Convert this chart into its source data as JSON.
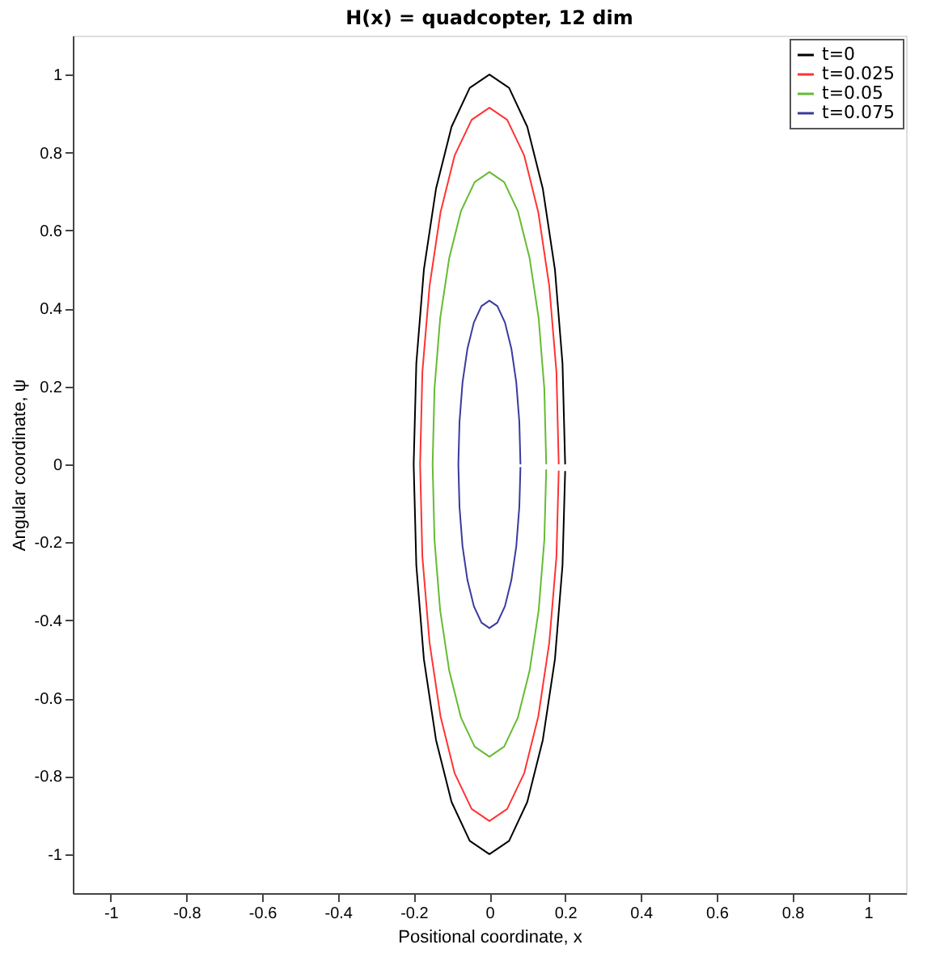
{
  "chart_data": {
    "type": "line",
    "title": "H(x) = quadcopter, 12 dim",
    "xlabel": "Positional coordinate, x",
    "ylabel": "Angular coordinate, ψ",
    "xlim": [
      -1.1,
      1.1
    ],
    "ylim": [
      -1.1,
      1.1
    ],
    "xticks": [
      -1,
      -0.8,
      -0.6,
      -0.4,
      -0.2,
      0,
      0.2,
      0.4,
      0.6,
      0.8,
      1
    ],
    "yticks": [
      -1,
      -0.8,
      -0.6,
      -0.4,
      -0.2,
      0,
      0.2,
      0.4,
      0.6,
      0.8,
      1
    ],
    "grid": false,
    "legend": "top right",
    "marker": "none",
    "line_style": "solid",
    "series": [
      {
        "name": "t=0",
        "color": "#000000",
        "x": [
          0.2,
          0.193,
          0.173,
          0.141,
          0.1,
          0.052,
          0,
          -0.052,
          -0.1,
          -0.141,
          -0.173,
          -0.193,
          -0.2,
          -0.193,
          -0.173,
          -0.141,
          -0.1,
          -0.052,
          0,
          0.052,
          0.1,
          0.141,
          0.173,
          0.193,
          0.2
        ],
        "values": [
          0,
          0.259,
          0.5,
          0.707,
          0.866,
          0.966,
          1,
          0.966,
          0.866,
          0.707,
          0.5,
          0.259,
          0,
          -0.259,
          -0.5,
          -0.707,
          -0.866,
          -0.966,
          -1,
          -0.966,
          -0.866,
          -0.707,
          -0.5,
          -0.259,
          -0.017
        ]
      },
      {
        "name": "t=0.025",
        "color": "#ff3333",
        "x": [
          0.183,
          0.177,
          0.158,
          0.129,
          0.092,
          0.047,
          0,
          -0.047,
          -0.092,
          -0.129,
          -0.158,
          -0.177,
          -0.183,
          -0.177,
          -0.158,
          -0.129,
          -0.092,
          -0.047,
          0,
          0.047,
          0.092,
          0.129,
          0.158,
          0.177,
          0.183
        ],
        "values": [
          0,
          0.237,
          0.458,
          0.647,
          0.792,
          0.884,
          0.915,
          0.884,
          0.792,
          0.647,
          0.458,
          0.237,
          0,
          -0.237,
          -0.458,
          -0.647,
          -0.792,
          -0.884,
          -0.915,
          -0.884,
          -0.792,
          -0.647,
          -0.458,
          -0.237,
          -0.016
        ]
      },
      {
        "name": "t=0.05",
        "color": "#66bb33",
        "x": [
          0.15,
          0.145,
          0.13,
          0.106,
          0.075,
          0.039,
          0,
          -0.039,
          -0.075,
          -0.106,
          -0.13,
          -0.145,
          -0.15,
          -0.145,
          -0.13,
          -0.106,
          -0.075,
          -0.039,
          0,
          0.039,
          0.075,
          0.106,
          0.13,
          0.145,
          0.15
        ],
        "values": [
          0,
          0.194,
          0.375,
          0.53,
          0.65,
          0.724,
          0.75,
          0.724,
          0.65,
          0.53,
          0.375,
          0.194,
          0,
          -0.194,
          -0.375,
          -0.53,
          -0.65,
          -0.724,
          -0.75,
          -0.724,
          -0.65,
          -0.53,
          -0.375,
          -0.194,
          -0.013
        ]
      },
      {
        "name": "t=0.075",
        "color": "#3a3a9e",
        "x": [
          0.082,
          0.079,
          0.071,
          0.058,
          0.041,
          0.021,
          0,
          -0.021,
          -0.041,
          -0.058,
          -0.071,
          -0.079,
          -0.082,
          -0.079,
          -0.071,
          -0.058,
          -0.041,
          -0.021,
          0,
          0.021,
          0.041,
          0.058,
          0.071,
          0.079,
          0.082
        ],
        "values": [
          0,
          0.109,
          0.21,
          0.297,
          0.364,
          0.406,
          0.42,
          0.406,
          0.364,
          0.297,
          0.21,
          0.109,
          0,
          -0.109,
          -0.21,
          -0.297,
          -0.364,
          -0.406,
          -0.42,
          -0.406,
          -0.364,
          -0.297,
          -0.21,
          -0.109,
          -0.007
        ]
      }
    ]
  }
}
